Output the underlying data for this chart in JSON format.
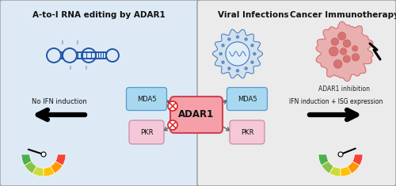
{
  "left_bg": "#ddeaf5",
  "right_bg": "#ebebeb",
  "border_color": "#999999",
  "title_left": "A-to-I RNA editing by ADAR1",
  "title_viral": "Viral Infections",
  "title_cancer": "Cancer Immunotherapy",
  "adar1_label": "ADAR1",
  "mda5_label": "MDA5",
  "pkr_label": "PKR",
  "no_ifn_label": "No IFN induction",
  "ifn_label": "IFN induction + ISG expression",
  "adar1_inhib_label": "ADAR1 inhibition",
  "gauge_colors_lr": [
    "#4caf50",
    "#8bc34a",
    "#cddc39",
    "#ffc107",
    "#ff9800",
    "#f44336"
  ],
  "adar1_box_fill": "#f5a0a8",
  "adar1_box_edge": "#cc4455",
  "mda5_fill": "#a8d8f0",
  "mda5_edge": "#5599cc",
  "pkr_fill": "#f5c8d8",
  "pkr_edge": "#cc88aa",
  "rna_color": "#2255aa",
  "virus_color": "#4477bb",
  "virus_fill": "#c8ddf0",
  "tumor_fill": "#e88080",
  "tumor_edge": "#cc5555",
  "tumor_cell": "#d06060",
  "fig_w": 5.0,
  "fig_h": 2.35,
  "dpi": 100
}
